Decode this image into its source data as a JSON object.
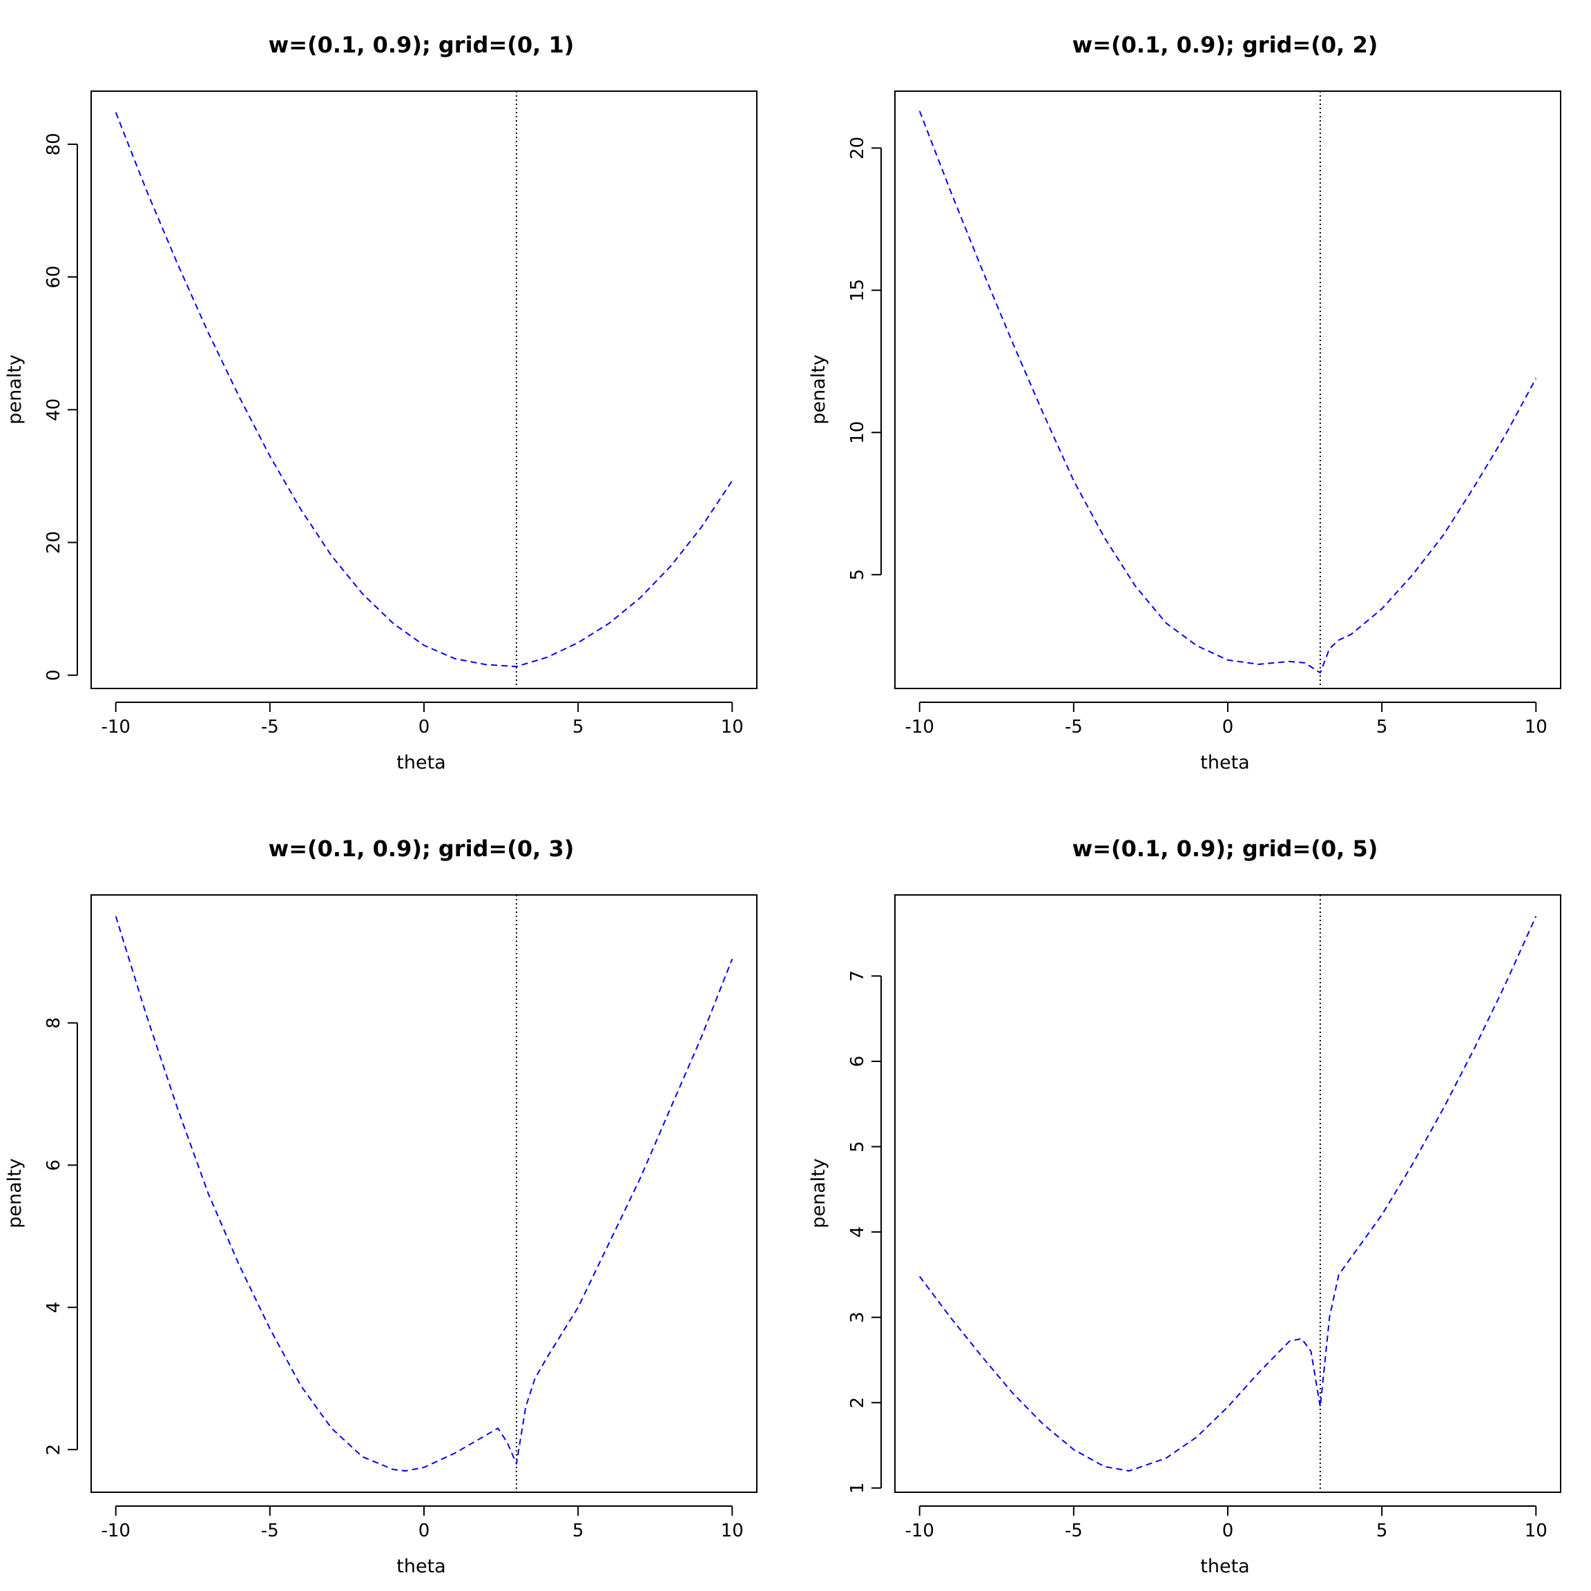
{
  "colors": {
    "curve": "#0000ff",
    "vline": "#000000",
    "axes": "#000000",
    "background": "#ffffff"
  },
  "chart_data": [
    {
      "type": "line",
      "title": "w=(0.1, 0.9); grid=(0, 1)",
      "xlabel": "theta",
      "ylabel": "penalty",
      "xlim": [
        -10.8,
        10.8
      ],
      "ylim": [
        -2,
        88
      ],
      "xticks": [
        -10,
        -5,
        0,
        5,
        10
      ],
      "xtick_labels": [
        "-10",
        "-5",
        "0",
        "5",
        "10"
      ],
      "yticks": [
        0,
        20,
        40,
        60,
        80
      ],
      "ytick_labels": [
        "0",
        "20",
        "40",
        "60",
        "80"
      ],
      "vline_x": 3,
      "grid": false,
      "series": [
        {
          "line_style": "dashed",
          "x": [
            -10,
            -9,
            -8,
            -7,
            -6,
            -5,
            -4,
            -3,
            -2,
            -1,
            0,
            1,
            2,
            3,
            4,
            5,
            6,
            7,
            8,
            9,
            10
          ],
          "values": [
            84.8,
            73.0,
            62.0,
            51.6,
            42.0,
            33.0,
            25.0,
            18.0,
            12.3,
            7.8,
            4.5,
            2.5,
            1.6,
            1.3,
            2.7,
            4.9,
            7.8,
            11.6,
            16.4,
            22.3,
            29.3
          ]
        }
      ]
    },
    {
      "type": "line",
      "title": "w=(0.1, 0.9); grid=(0, 2)",
      "xlabel": "theta",
      "ylabel": "penalty",
      "xlim": [
        -10.8,
        10.8
      ],
      "ylim": [
        1.0,
        22.0
      ],
      "xticks": [
        -10,
        -5,
        0,
        5,
        10
      ],
      "xtick_labels": [
        "-10",
        "-5",
        "0",
        "5",
        "10"
      ],
      "yticks": [
        5,
        10,
        15,
        20
      ],
      "ytick_labels": [
        "5",
        "10",
        "15",
        "20"
      ],
      "vline_x": 3,
      "grid": false,
      "series": [
        {
          "line_style": "dashed",
          "x": [
            -10,
            -9,
            -8,
            -7,
            -6,
            -5,
            -4,
            -3,
            -2,
            -1,
            0,
            1,
            2,
            2.5,
            3,
            3.3,
            3.6,
            4,
            5,
            6,
            7,
            8,
            9,
            10
          ],
          "values": [
            21.3,
            18.5,
            15.8,
            13.2,
            10.7,
            8.3,
            6.3,
            4.6,
            3.3,
            2.5,
            2.0,
            1.85,
            1.95,
            1.9,
            1.55,
            2.4,
            2.7,
            2.9,
            3.8,
            5.0,
            6.4,
            8.1,
            9.9,
            11.9
          ]
        }
      ]
    },
    {
      "type": "line",
      "title": "w=(0.1, 0.9); grid=(0, 3)",
      "xlabel": "theta",
      "ylabel": "penalty",
      "xlim": [
        -10.8,
        10.8
      ],
      "ylim": [
        1.4,
        9.8
      ],
      "xticks": [
        -10,
        -5,
        0,
        5,
        10
      ],
      "xtick_labels": [
        "-10",
        "-5",
        "0",
        "5",
        "10"
      ],
      "yticks": [
        2,
        4,
        6,
        8
      ],
      "ytick_labels": [
        "2",
        "4",
        "6",
        "8"
      ],
      "vline_x": 3,
      "grid": false,
      "series": [
        {
          "line_style": "dashed",
          "x": [
            -10,
            -9,
            -8,
            -7,
            -6,
            -5,
            -4,
            -3,
            -2,
            -1,
            -0.6,
            0,
            1,
            2,
            2.4,
            2.7,
            3,
            3.3,
            3.6,
            4,
            5,
            6,
            7,
            8,
            9,
            10
          ],
          "values": [
            9.5,
            8.1,
            6.8,
            5.6,
            4.6,
            3.7,
            2.9,
            2.3,
            1.9,
            1.72,
            1.7,
            1.75,
            1.95,
            2.2,
            2.3,
            2.1,
            1.8,
            2.6,
            3.0,
            3.3,
            4.0,
            4.9,
            5.8,
            6.8,
            7.8,
            8.9
          ]
        }
      ]
    },
    {
      "type": "line",
      "title": "w=(0.1, 0.9); grid=(0, 5)",
      "xlabel": "theta",
      "ylabel": "penalty",
      "xlim": [
        -10.8,
        10.8
      ],
      "ylim": [
        0.95,
        7.95
      ],
      "xticks": [
        -10,
        -5,
        0,
        5,
        10
      ],
      "xtick_labels": [
        "-10",
        "-5",
        "0",
        "5",
        "10"
      ],
      "yticks": [
        1,
        2,
        3,
        4,
        5,
        6,
        7
      ],
      "ytick_labels": [
        "1",
        "2",
        "3",
        "4",
        "5",
        "6",
        "7"
      ],
      "vline_x": 3,
      "grid": false,
      "series": [
        {
          "line_style": "dashed",
          "x": [
            -10,
            -9,
            -8,
            -7,
            -6,
            -5,
            -4,
            -3.2,
            -2,
            -1,
            0,
            1,
            2,
            2.4,
            2.7,
            3,
            3.3,
            3.6,
            4,
            5,
            6,
            7,
            8,
            9,
            10
          ],
          "values": [
            3.48,
            3.0,
            2.55,
            2.12,
            1.75,
            1.45,
            1.25,
            1.2,
            1.35,
            1.6,
            1.95,
            2.35,
            2.72,
            2.75,
            2.6,
            1.95,
            3.0,
            3.5,
            3.7,
            4.2,
            4.8,
            5.45,
            6.15,
            6.9,
            7.7
          ]
        }
      ]
    }
  ]
}
